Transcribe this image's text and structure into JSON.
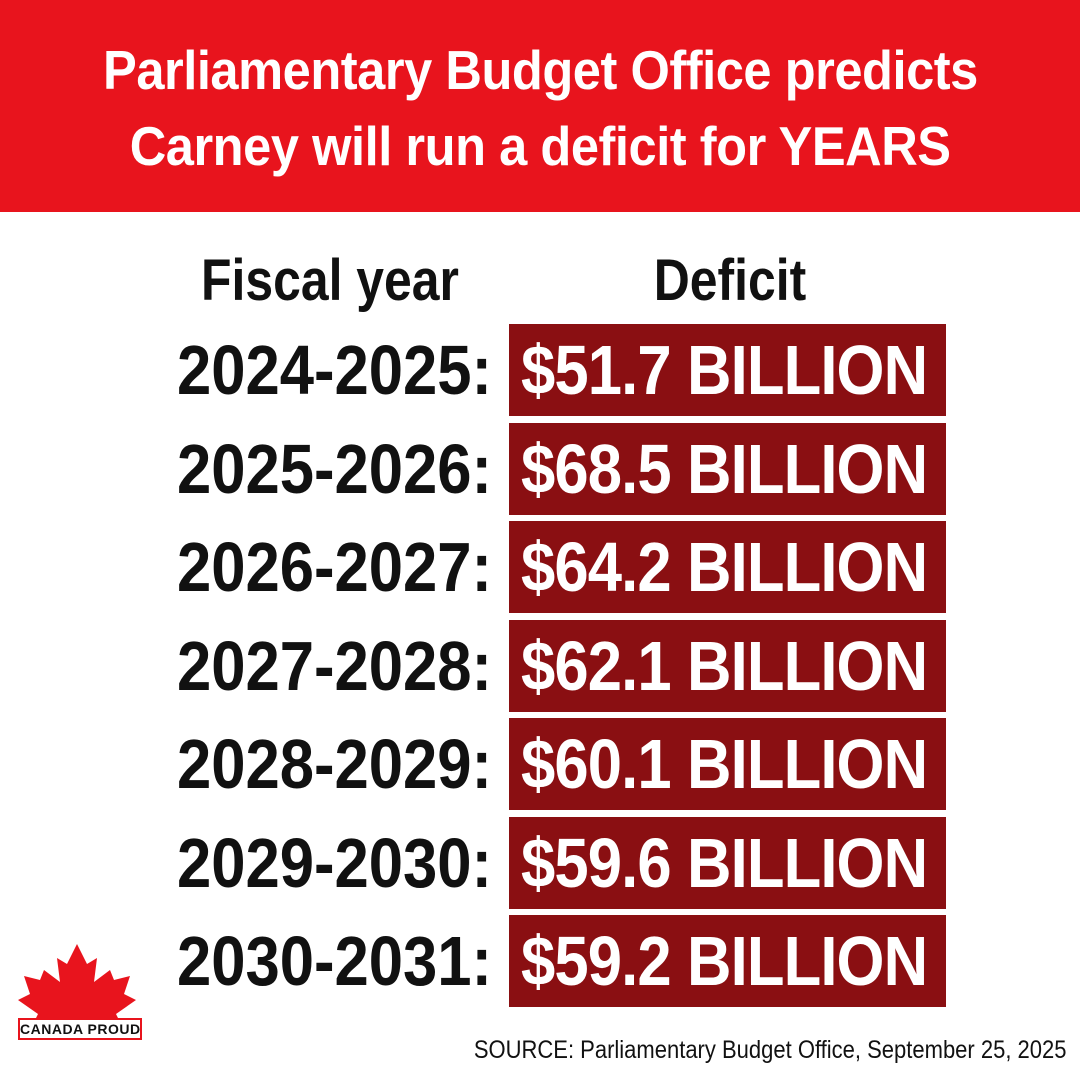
{
  "header": {
    "line1": "Parliamentary Budget Office predicts",
    "line2": "Carney will run a deficit for YEARS"
  },
  "chart_data": {
    "type": "table",
    "columns": [
      "Fiscal year",
      "Deficit"
    ],
    "rows": [
      {
        "year": "2024-2025:",
        "deficit": "$51.7 BILLION",
        "value": 51.7
      },
      {
        "year": "2025-2026:",
        "deficit": "$68.5 BILLION",
        "value": 68.5
      },
      {
        "year": "2026-2027:",
        "deficit": "$64.2 BILLION",
        "value": 64.2
      },
      {
        "year": "2027-2028:",
        "deficit": "$62.1 BILLION",
        "value": 62.1
      },
      {
        "year": "2028-2029:",
        "deficit": "$60.1 BILLION",
        "value": 60.1
      },
      {
        "year": "2029-2030:",
        "deficit": "$59.6 BILLION",
        "value": 59.6
      },
      {
        "year": "2030-2031:",
        "deficit": "$59.2 BILLION",
        "value": 59.2
      }
    ]
  },
  "logo": {
    "text": "CANADA PROUD",
    "icon": "maple-leaf-icon"
  },
  "source": "SOURCE: Parliamentary Budget Office, September 25, 2025",
  "colors": {
    "header_bg": "#e8141d",
    "amount_bg": "#8a0f12",
    "text": "#111111"
  }
}
